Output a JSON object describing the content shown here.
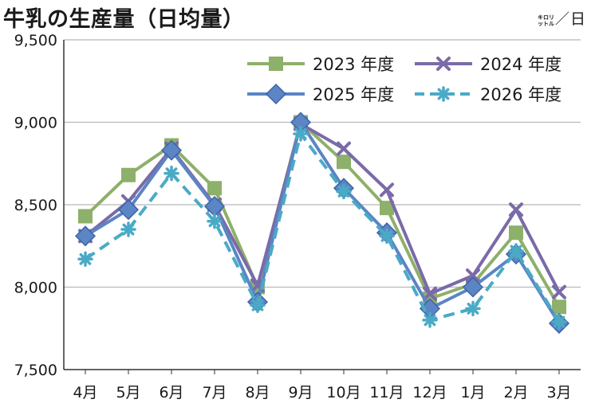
{
  "header": {
    "title": "牛乳の生産量（日均量）",
    "unit_small_top": "キロリ",
    "unit_small_bottom": "ットル",
    "unit_slash": "／",
    "unit_day": "日"
  },
  "chart_data": {
    "type": "line",
    "categories": [
      "4月",
      "5月",
      "6月",
      "7月",
      "8月",
      "9月",
      "10月",
      "11月",
      "12月",
      "1月",
      "2月",
      "3月"
    ],
    "y_ticks": [
      "7,500",
      "8,000",
      "8,500",
      "9,000",
      "9,500"
    ],
    "ylim": [
      7500,
      9500
    ],
    "grid": true,
    "legend_position": "top-right",
    "series": [
      {
        "name": "2023 年度",
        "color": "#8db06a",
        "marker": "square",
        "dash": false,
        "values": [
          8430,
          8680,
          8860,
          8600,
          8000,
          9000,
          8760,
          8480,
          7930,
          8020,
          8330,
          7880
        ]
      },
      {
        "name": "2024 年度",
        "color": "#7b6aa8",
        "marker": "x",
        "dash": false,
        "values": [
          8310,
          8520,
          8840,
          8500,
          8010,
          8990,
          8840,
          8590,
          7960,
          8070,
          8470,
          7970
        ]
      },
      {
        "name": "2025 年度",
        "color": "#5b85c4",
        "marker": "diamond",
        "dash": false,
        "values": [
          8310,
          8470,
          8830,
          8490,
          7910,
          9000,
          8600,
          8330,
          7870,
          8000,
          8200,
          7780
        ]
      },
      {
        "name": "2026 年度",
        "color": "#4aaac6",
        "marker": "asterisk",
        "dash": true,
        "values": [
          8170,
          8350,
          8690,
          8400,
          7890,
          8930,
          8580,
          8310,
          7800,
          7870,
          8220,
          7790
        ]
      }
    ]
  }
}
